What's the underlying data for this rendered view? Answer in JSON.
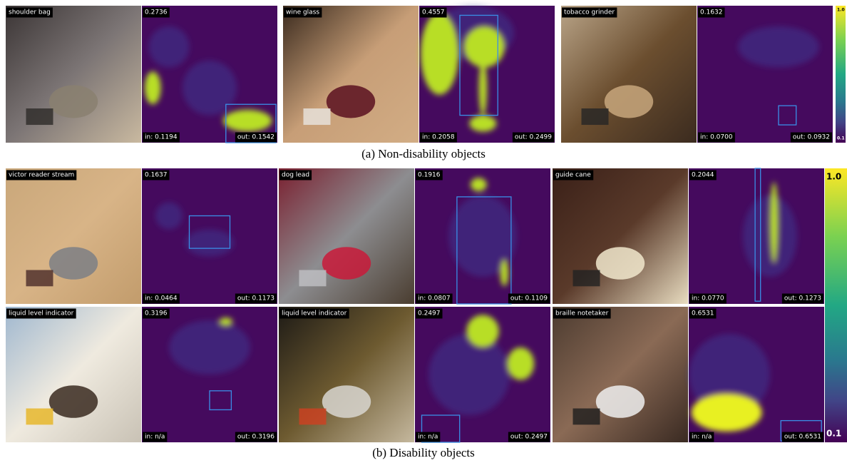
{
  "figure": {
    "groups": [
      {
        "caption": "(a) Non-disability objects",
        "colorbar": {
          "max": "1.0",
          "min": "0.1"
        },
        "rows": [
          [
            {
              "object": "shoulder bag",
              "score": "0.2736",
              "in": "in: 0.1194",
              "out": "out: 0.1542"
            },
            {
              "object": "wine glass",
              "score": "0.4557",
              "in": "in: 0.2058",
              "out": "out: 0.2499"
            },
            {
              "object": "tobacco grinder",
              "score": "0.1632",
              "in": "in: 0.0700",
              "out": "out: 0.0932"
            }
          ]
        ]
      },
      {
        "caption": "(b) Disability objects",
        "colorbar": {
          "max": "1.0",
          "min": "0.1"
        },
        "rows": [
          [
            {
              "object": "victor reader stream",
              "score": "0.1637",
              "in": "in: 0.0464",
              "out": "out: 0.1173"
            },
            {
              "object": "dog lead",
              "score": "0.1916",
              "in": "in: 0.0807",
              "out": "out: 0.1109"
            },
            {
              "object": "guide cane",
              "score": "0.2044",
              "in": "in: 0.0770",
              "out": "out: 0.1273"
            }
          ],
          [
            {
              "object": "liquid level indicator",
              "score": "0.3196",
              "in": "in: n/a",
              "out": "out: 0.3196"
            },
            {
              "object": "liquid level indicator",
              "score": "0.2497",
              "in": "in: n/a",
              "out": "out: 0.2497"
            },
            {
              "object": "braille notetaker",
              "score": "0.6531",
              "in": "in: n/a",
              "out": "out: 0.6531"
            }
          ]
        ]
      }
    ]
  }
}
